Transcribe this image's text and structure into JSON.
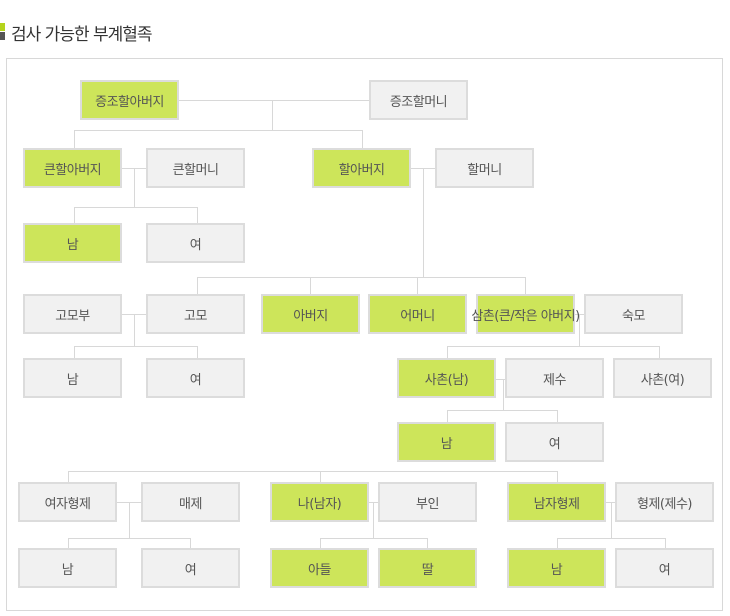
{
  "title": "검사 가능한 부계혈족",
  "colors": {
    "highlight": "#cde55a",
    "normal": "#f1f1f1",
    "accent": "#b5d41c"
  },
  "nodes": [
    {
      "label": "증조할아버지",
      "highlight": true
    },
    {
      "label": "증조할머니",
      "highlight": false
    },
    {
      "label": "큰할아버지",
      "highlight": true
    },
    {
      "label": "큰할머니",
      "highlight": false
    },
    {
      "label": "할아버지",
      "highlight": true
    },
    {
      "label": "할머니",
      "highlight": false
    },
    {
      "label": "남",
      "highlight": true
    },
    {
      "label": "여",
      "highlight": false
    },
    {
      "label": "고모부",
      "highlight": false
    },
    {
      "label": "고모",
      "highlight": false
    },
    {
      "label": "아버지",
      "highlight": true
    },
    {
      "label": "어머니",
      "highlight": true
    },
    {
      "label": "삼촌(큰/작은 아버지)",
      "highlight": true
    },
    {
      "label": "숙모",
      "highlight": false
    },
    {
      "label": "남",
      "highlight": false
    },
    {
      "label": "여",
      "highlight": false
    },
    {
      "label": "사촌(남)",
      "highlight": true
    },
    {
      "label": "제수",
      "highlight": false
    },
    {
      "label": "사촌(여)",
      "highlight": false
    },
    {
      "label": "남",
      "highlight": true
    },
    {
      "label": "여",
      "highlight": false
    },
    {
      "label": "여자형제",
      "highlight": false
    },
    {
      "label": "매제",
      "highlight": false
    },
    {
      "label": "나(남자)",
      "highlight": true
    },
    {
      "label": "부인",
      "highlight": false
    },
    {
      "label": "남자형제",
      "highlight": true
    },
    {
      "label": "형제(제수)",
      "highlight": false
    },
    {
      "label": "남",
      "highlight": false
    },
    {
      "label": "여",
      "highlight": false
    },
    {
      "label": "아들",
      "highlight": true
    },
    {
      "label": "딸",
      "highlight": true
    },
    {
      "label": "남",
      "highlight": true
    },
    {
      "label": "여",
      "highlight": false
    }
  ]
}
